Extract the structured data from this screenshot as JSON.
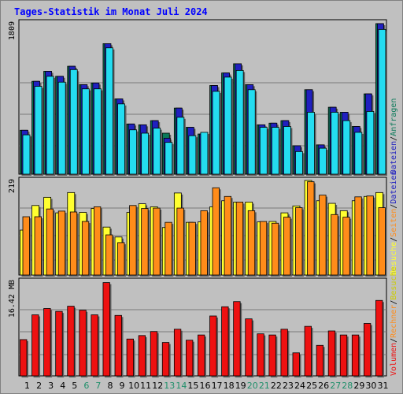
{
  "chart_data": {
    "type": "bar",
    "title": "Tages-Statistik im Monat Juli 2024",
    "x": [
      "1",
      "2",
      "3",
      "4",
      "5",
      "6",
      "7",
      "8",
      "9",
      "10",
      "11",
      "12",
      "13",
      "14",
      "15",
      "16",
      "17",
      "18",
      "19",
      "20",
      "21",
      "22",
      "23",
      "24",
      "25",
      "26",
      "27",
      "28",
      "29",
      "30",
      "31"
    ],
    "weekend_days": [
      "6",
      "7",
      "13",
      "14",
      "20",
      "21",
      "27",
      "28"
    ],
    "colors": {
      "background": "#c0c0c0",
      "title": "#0000ff",
      "weekday_label": "#000000",
      "weekend_label": "#1f8f6a",
      "anfragen": "#0b7a5a",
      "seiten": "#24dcf0",
      "dateien": "#2020c0",
      "besuche": "#ffff30",
      "rechner": "#ff8c1a",
      "volumen": "#ee1111"
    },
    "panels": [
      {
        "id": "top",
        "max_label": "1809",
        "ylim": [
          0,
          1809
        ],
        "right_legend": [
          {
            "text": "Dateien",
            "color": "#2020c0"
          },
          {
            "text": "/",
            "color": "#000000"
          },
          {
            "text": "Anfragen",
            "color": "#0b7a5a"
          }
        ],
        "series": [
          {
            "name": "Anfragen",
            "values": [
              525,
              1110,
              1230,
              1170,
              1290,
              1070,
              1090,
              1560,
              900,
              600,
              590,
              640,
              490,
              790,
              560,
              480,
              1060,
              1210,
              1320,
              1070,
              590,
              610,
              640,
              340,
              1010,
              350,
              800,
              740,
              570,
              960,
              1800
            ]
          },
          {
            "name": "Seiten",
            "values": [
              470,
              1050,
              1170,
              1100,
              1250,
              1020,
              1020,
              1510,
              840,
              530,
              490,
              550,
              380,
              680,
              460,
              500,
              990,
              1160,
              1240,
              1010,
              560,
              560,
              570,
              270,
              740,
              310,
              740,
              640,
              500,
              750,
              1730
            ]
          },
          {
            "name": "Dateien",
            "values": [
              525,
              1110,
              1230,
              1170,
              1290,
              1070,
              1090,
              1560,
              900,
              600,
              590,
              640,
              430,
              790,
              560,
              480,
              1060,
              1210,
              1320,
              1070,
              590,
              610,
              640,
              340,
              1010,
              350,
              800,
              740,
              570,
              960,
              1800
            ]
          }
        ]
      },
      {
        "id": "middle",
        "max_label": "219",
        "ylim": [
          0,
          219
        ],
        "right_legend": [
          {
            "text": "Besuche",
            "color": "#ffff30"
          },
          {
            "text": "/",
            "color": "#000000"
          },
          {
            "text": "Seiten",
            "color": "#ff8c1a"
          },
          {
            "text": "/",
            "color": "#000000"
          },
          {
            "text": "Dateien",
            "color": "#2020c0"
          }
        ],
        "series": [
          {
            "name": "Besuche",
            "values": [
              104,
              161,
              180,
              144,
              191,
              145,
              154,
              111,
              88,
              145,
              165,
              158,
              110,
              190,
              122,
              123,
              158,
              172,
              169,
              169,
              123,
              124,
              144,
              160,
              219,
              172,
              166,
              149,
              172,
              182,
              191
            ]
          },
          {
            "name": "Rechner",
            "values": [
              135,
              135,
              153,
              148,
              146,
              124,
              158,
              93,
              75,
              161,
              154,
              155,
              122,
              155,
              122,
              149,
              202,
              182,
              169,
              149,
              124,
              120,
              134,
              156,
              216,
              185,
              140,
              134,
              181,
              183,
              156
            ]
          }
        ]
      },
      {
        "id": "bottom",
        "max_label": "16.42 MB",
        "ylim": [
          0,
          16.42
        ],
        "right_legend": [
          {
            "text": "Volumen",
            "color": "#ee1111"
          },
          {
            "text": "/",
            "color": "#000000"
          },
          {
            "text": "Rechner",
            "color": "#ff8c1a"
          },
          {
            "text": "/",
            "color": "#000000"
          },
          {
            "text": "Besuche",
            "color": "#cccc00"
          }
        ],
        "series": [
          {
            "name": "Volumen",
            "values": [
              6.3,
              10.6,
              11.7,
              11.2,
              12.1,
              11.4,
              10.6,
              16.2,
              10.5,
              6.4,
              7.0,
              7.7,
              5.8,
              8.1,
              6.2,
              7.1,
              10.4,
              12.0,
              12.9,
              9.9,
              7.3,
              7.1,
              8.1,
              4.0,
              8.6,
              5.3,
              7.8,
              7.1,
              7.1,
              9.1,
              13.1
            ]
          }
        ]
      }
    ],
    "grid": true,
    "legend_placement": "right-vertical"
  }
}
